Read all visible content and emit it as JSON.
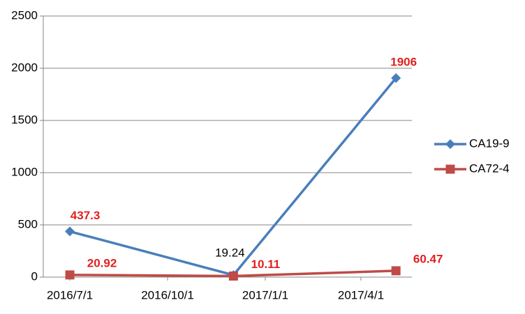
{
  "chart_data": {
    "type": "line",
    "xticks": [
      "2016/7/1",
      "2016/10/1",
      "2017/1/1",
      "2017/4/1"
    ],
    "xlim": [
      "2016/6/6",
      "2017/5/19"
    ],
    "ylim": [
      0,
      2500
    ],
    "yticks": [
      0,
      500,
      1000,
      1500,
      2000,
      2500
    ],
    "grid": true,
    "legend": "right",
    "x": [
      "2016/7/1",
      "2016/12/2",
      "2017/5/4"
    ],
    "series": [
      {
        "name": "CA19-9",
        "color": "#4a7ebb",
        "marker": "diamond",
        "values": [
          437.3,
          19.24,
          1906
        ],
        "label_colors": [
          "#e02020",
          "#000000",
          "#e02020"
        ]
      },
      {
        "name": "CA72-4",
        "color": "#be4b48",
        "marker": "square",
        "values": [
          20.92,
          10.11,
          60.47
        ],
        "label_colors": [
          "#e02020",
          "#e02020",
          "#e02020"
        ]
      }
    ]
  }
}
